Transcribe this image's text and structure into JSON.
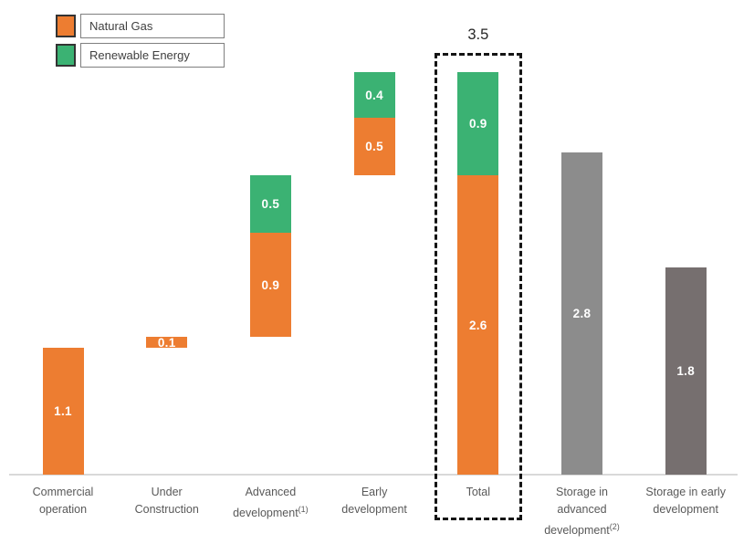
{
  "legend": {
    "items": [
      {
        "label": "Natural Gas",
        "color": "#ED7D31"
      },
      {
        "label": "Renewable Energy",
        "color": "#3BB273"
      }
    ]
  },
  "chart_data": {
    "type": "bar",
    "subtype": "stacked-waterfall",
    "title": "",
    "xlabel": "",
    "ylabel": "",
    "ylim": [
      0,
      3.9
    ],
    "grid": false,
    "legend_position": "top-left",
    "series_colors": {
      "Natural Gas": "#ED7D31",
      "Renewable Energy": "#3BB273",
      "Storage (advanced)": "#8C8C8C",
      "Storage (early)": "#766F6F"
    },
    "categories": [
      "Commercial operation",
      "Under Construction",
      "Advanced development (1)",
      "Early development",
      "Total",
      "Storage in advanced development (2)",
      "Storage in early development"
    ],
    "bars": [
      {
        "category": "Commercial operation",
        "label_lines": [
          "Commercial",
          "operation"
        ],
        "footnote": "",
        "start": 0,
        "highlight": false,
        "total_label": "",
        "segments": [
          {
            "series": "Natural Gas",
            "value": 1.1,
            "label": "1.1",
            "color": "#ED7D31"
          }
        ]
      },
      {
        "category": "Under Construction",
        "label_lines": [
          "Under",
          "Construction"
        ],
        "footnote": "",
        "start": 1.1,
        "highlight": false,
        "total_label": "",
        "segments": [
          {
            "series": "Natural Gas",
            "value": 0.1,
            "label": "0.1",
            "color": "#ED7D31"
          }
        ]
      },
      {
        "category": "Advanced development",
        "label_lines": [
          "Advanced",
          "development"
        ],
        "footnote": "(1)",
        "start": 1.2,
        "highlight": false,
        "total_label": "",
        "segments": [
          {
            "series": "Natural Gas",
            "value": 0.9,
            "label": "0.9",
            "color": "#ED7D31"
          },
          {
            "series": "Renewable Energy",
            "value": 0.5,
            "label": "0.5",
            "color": "#3BB273"
          }
        ]
      },
      {
        "category": "Early development",
        "label_lines": [
          "Early",
          "development"
        ],
        "footnote": "",
        "start": 2.6,
        "highlight": false,
        "total_label": "",
        "segments": [
          {
            "series": "Natural Gas",
            "value": 0.5,
            "label": "0.5",
            "color": "#ED7D31"
          },
          {
            "series": "Renewable Energy",
            "value": 0.4,
            "label": "0.4",
            "color": "#3BB273"
          }
        ]
      },
      {
        "category": "Total",
        "label_lines": [
          "Total"
        ],
        "footnote": "",
        "start": 0,
        "highlight": true,
        "total_label": "3.5",
        "segments": [
          {
            "series": "Natural Gas",
            "value": 2.6,
            "label": "2.6",
            "color": "#ED7D31"
          },
          {
            "series": "Renewable Energy",
            "value": 0.9,
            "label": "0.9",
            "color": "#3BB273"
          }
        ]
      },
      {
        "category": "Storage in advanced development",
        "label_lines": [
          "Storage in",
          "advanced",
          "development"
        ],
        "footnote": "(2)",
        "start": 0,
        "highlight": false,
        "total_label": "",
        "segments": [
          {
            "series": "Storage (advanced)",
            "value": 2.8,
            "label": "2.8",
            "color": "#8C8C8C"
          }
        ]
      },
      {
        "category": "Storage in early development",
        "label_lines": [
          "Storage in early",
          "development"
        ],
        "footnote": "",
        "start": 0,
        "highlight": false,
        "total_label": "",
        "segments": [
          {
            "series": "Storage (early)",
            "value": 1.8,
            "label": "1.8",
            "color": "#766F6F"
          }
        ]
      }
    ]
  }
}
